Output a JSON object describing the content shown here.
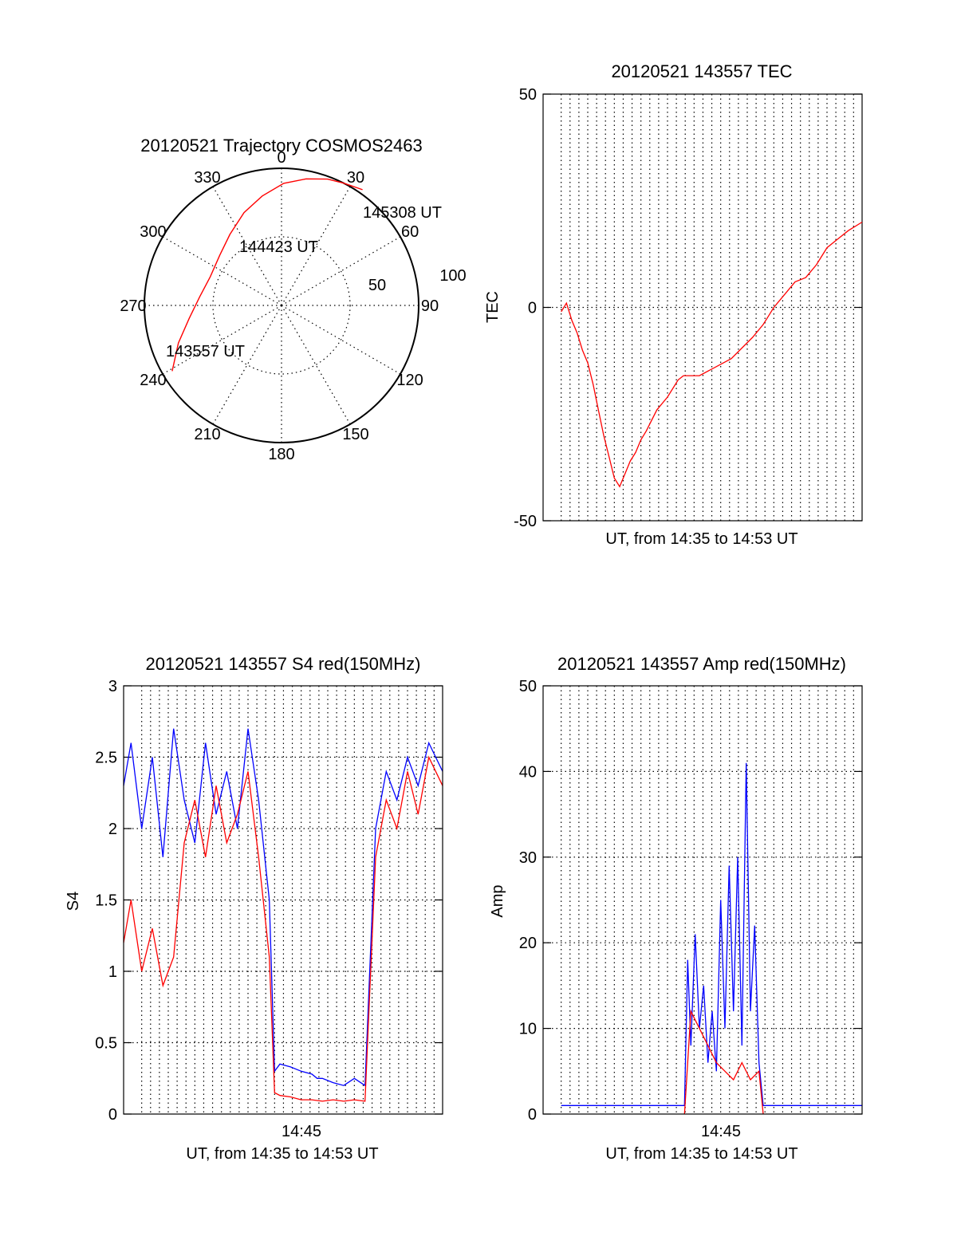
{
  "colors": {
    "red": "#ff0000",
    "blue": "#0000ff",
    "axis": "#000000"
  },
  "chart_data": [
    {
      "type": "polar",
      "title": "20120521 Trajectory COSMOS2463",
      "angle_labels": [
        "0",
        "30",
        "60",
        "90",
        "120",
        "150",
        "180",
        "210",
        "240",
        "270",
        "300",
        "330"
      ],
      "radius_labels": [
        "50",
        "100"
      ],
      "r_max": 100,
      "grid": true,
      "series": [
        {
          "color": "#ff0000",
          "points": [
            {
              "az": 239,
              "r": 93
            },
            {
              "az": 250,
              "r": 80
            },
            {
              "az": 262,
              "r": 68
            },
            {
              "az": 276,
              "r": 60
            },
            {
              "az": 292,
              "r": 56
            },
            {
              "az": 309,
              "r": 58
            },
            {
              "az": 324,
              "r": 64
            },
            {
              "az": 338,
              "r": 73
            },
            {
              "az": 350,
              "r": 81
            },
            {
              "az": 1,
              "r": 89
            },
            {
              "az": 11,
              "r": 94
            },
            {
              "az": 20,
              "r": 98
            },
            {
              "az": 27,
              "r": 100
            },
            {
              "az": 35,
              "r": 103
            }
          ]
        }
      ],
      "annotations": [
        "145308 UT",
        "144423 UT",
        "143557 UT"
      ]
    },
    {
      "type": "line",
      "title": "20120521 143557 TEC",
      "xlabel": "UT, from 14:35 to 14:53 UT",
      "ylabel": "TEC",
      "xlim": [
        14.583,
        14.883
      ],
      "ylim": [
        -50,
        50
      ],
      "yticks": [
        "-50",
        "0",
        "50"
      ],
      "grid": true,
      "series": [
        {
          "color": "#ff0000",
          "x": [
            14.6,
            14.605,
            14.61,
            14.615,
            14.62,
            14.625,
            14.63,
            14.635,
            14.64,
            14.645,
            14.65,
            14.655,
            14.66,
            14.665,
            14.67,
            14.675,
            14.68,
            14.69,
            14.7,
            14.71,
            14.715,
            14.72,
            14.73,
            14.76,
            14.78,
            14.79,
            14.795,
            14.8,
            14.81,
            14.82,
            14.83,
            14.84,
            14.85,
            14.86,
            14.87,
            14.883
          ],
          "y": [
            -1,
            1,
            -3,
            -6,
            -10,
            -13,
            -18,
            -24,
            -30,
            -35,
            -40,
            -42,
            -39,
            -36,
            -34,
            -31,
            -29,
            -24,
            -21,
            -17,
            -16,
            -16,
            -16,
            -12,
            -7,
            -4,
            -2,
            0,
            3,
            6,
            7,
            10,
            14,
            16,
            18,
            20
          ]
        }
      ]
    },
    {
      "type": "line",
      "title": "20120521 143557 S4 red(150MHz)",
      "xlabel": "UT, from 14:35 to 14:53 UT",
      "ylabel": "S4",
      "xtick_label": "14:45",
      "xlim": [
        14.583,
        14.883
      ],
      "ylim": [
        0,
        3
      ],
      "yticks": [
        "0",
        "0.5",
        "1",
        "1.5",
        "2",
        "2.5",
        "3"
      ],
      "grid": true,
      "series": [
        {
          "color": "#0000ff",
          "x": [
            14.583,
            14.59,
            14.6,
            14.61,
            14.62,
            14.63,
            14.64,
            14.65,
            14.66,
            14.67,
            14.68,
            14.69,
            14.7,
            14.71,
            14.72,
            14.725,
            14.73,
            14.74,
            14.75,
            14.76,
            14.765,
            14.77,
            14.78,
            14.79,
            14.8,
            14.81,
            14.82,
            14.83,
            14.84,
            14.85,
            14.86,
            14.87,
            14.883
          ],
          "y": [
            2.3,
            2.6,
            2.0,
            2.5,
            1.8,
            2.7,
            2.2,
            1.9,
            2.6,
            2.1,
            2.4,
            2.0,
            2.7,
            2.2,
            1.5,
            0.3,
            0.35,
            0.33,
            0.3,
            0.28,
            0.25,
            0.25,
            0.22,
            0.2,
            0.25,
            0.2,
            2.0,
            2.4,
            2.2,
            2.5,
            2.3,
            2.6,
            2.4
          ]
        },
        {
          "color": "#ff0000",
          "x": [
            14.583,
            14.59,
            14.6,
            14.61,
            14.62,
            14.63,
            14.64,
            14.65,
            14.66,
            14.67,
            14.68,
            14.69,
            14.7,
            14.71,
            14.72,
            14.725,
            14.73,
            14.74,
            14.75,
            14.76,
            14.77,
            14.78,
            14.79,
            14.8,
            14.81,
            14.82,
            14.83,
            14.84,
            14.85,
            14.86,
            14.87,
            14.883
          ],
          "y": [
            1.2,
            1.5,
            1.0,
            1.3,
            0.9,
            1.1,
            1.9,
            2.2,
            1.8,
            2.3,
            1.9,
            2.1,
            2.4,
            1.8,
            1.1,
            0.15,
            0.13,
            0.12,
            0.1,
            0.1,
            0.09,
            0.1,
            0.09,
            0.1,
            0.09,
            1.8,
            2.2,
            2.0,
            2.4,
            2.1,
            2.5,
            2.3
          ]
        }
      ]
    },
    {
      "type": "line",
      "title": "20120521 143557 Amp red(150MHz)",
      "xlabel": "UT, from 14:35 to 14:53 UT",
      "ylabel": "Amp",
      "xtick_label": "14:45",
      "xlim": [
        14.583,
        14.883
      ],
      "ylim": [
        0,
        50
      ],
      "yticks": [
        "0",
        "10",
        "20",
        "30",
        "40",
        "50"
      ],
      "grid": true,
      "series": [
        {
          "color": "#0000ff",
          "x": [
            14.6,
            14.62,
            14.65,
            14.68,
            14.716,
            14.719,
            14.722,
            14.726,
            14.73,
            14.734,
            14.738,
            14.742,
            14.746,
            14.75,
            14.754,
            14.758,
            14.762,
            14.766,
            14.77,
            14.774,
            14.778,
            14.782,
            14.786,
            14.79,
            14.81,
            14.84,
            14.87,
            14.883
          ],
          "y": [
            1,
            1,
            1,
            1,
            1,
            18,
            8,
            21,
            10,
            15,
            6,
            12,
            5,
            25,
            10,
            29,
            12,
            30,
            8,
            41,
            12,
            22,
            6,
            1,
            1,
            1,
            1,
            1
          ]
        },
        {
          "color": "#ff0000",
          "x": [
            14.716,
            14.722,
            14.73,
            14.738,
            14.746,
            14.754,
            14.762,
            14.77,
            14.778,
            14.786,
            14.79
          ],
          "y": [
            0,
            12,
            10,
            8,
            6,
            5,
            4,
            6,
            4,
            5,
            0
          ]
        }
      ]
    }
  ]
}
